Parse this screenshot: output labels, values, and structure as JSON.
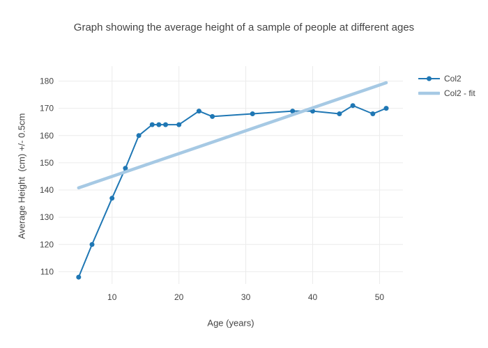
{
  "chart_data": {
    "type": "line",
    "title": "Graph showing the average height of a sample of people at different ages",
    "xlabel": "Age (years)",
    "ylabel": "Average Height  (cm) +/- 0.5cm",
    "xlim": [
      2.0,
      53.5
    ],
    "ylim": [
      105.5,
      185.5
    ],
    "xticks": [
      10,
      20,
      30,
      40,
      50
    ],
    "yticks": [
      110,
      120,
      130,
      140,
      150,
      160,
      170,
      180
    ],
    "grid": true,
    "legend_position": "top-right-outside",
    "series": [
      {
        "name": "Col2",
        "mode": "lines+markers",
        "color": "#1f77b4",
        "line_width": 2,
        "marker_size": 7,
        "x": [
          5,
          7,
          10,
          12,
          14,
          16,
          17,
          18,
          20,
          23,
          25,
          31,
          37,
          40,
          44,
          46,
          49,
          51
        ],
        "y": [
          108,
          120,
          137,
          148,
          160,
          164,
          164,
          164,
          164,
          169,
          167,
          168,
          169,
          169,
          168,
          171,
          168,
          170
        ]
      },
      {
        "name": "Col2 - fit",
        "mode": "lines",
        "color": "#a6c9e4",
        "line_width": 4.5,
        "x": [
          5,
          51
        ],
        "y": [
          140.8,
          179.4
        ]
      }
    ]
  },
  "colors": {
    "grid": "#ebebeb",
    "text": "#444444",
    "background": "#ffffff"
  }
}
